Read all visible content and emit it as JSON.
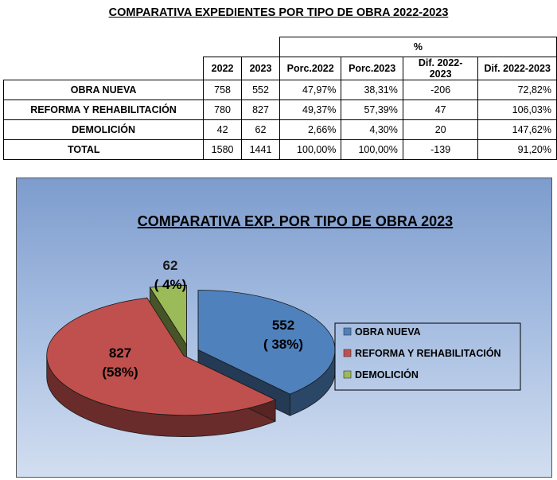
{
  "page": {
    "title": "COMPARATIVA EXPEDIENTES POR TIPO DE OBRA 2022-2023"
  },
  "table": {
    "group_header": "%",
    "headers": [
      "2022",
      "2023",
      "Porc.2022",
      "Porc.2023",
      "Dif. 2022-2023",
      "Dif. 2022-2023"
    ],
    "rows": [
      {
        "label": "OBRA NUEVA",
        "y2022": "758",
        "y2023": "552",
        "p2022": "47,97%",
        "p2023": "38,31%",
        "dif": "-206",
        "difp": "72,82%"
      },
      {
        "label": "REFORMA Y REHABILITACIÓN",
        "y2022": "780",
        "y2023": "827",
        "p2022": "49,37%",
        "p2023": "57,39%",
        "dif": "47",
        "difp": "106,03%"
      },
      {
        "label": "DEMOLICIÓN",
        "y2022": "42",
        "y2023": "62",
        "p2022": "2,66%",
        "p2023": "4,30%",
        "dif": "20",
        "difp": "147,62%"
      },
      {
        "label": "TOTAL",
        "y2022": "1580",
        "y2023": "1441",
        "p2022": "100,00%",
        "p2023": "100,00%",
        "dif": "-139",
        "difp": "91,20%"
      }
    ]
  },
  "chart_data": {
    "type": "pie",
    "title": "COMPARATIVA EXP. POR TIPO DE OBRA 2023",
    "slices": [
      {
        "name": "OBRA NUEVA",
        "value": 552,
        "label": "552",
        "pct_label": "( 38%)",
        "color": "#4f81bd"
      },
      {
        "name": "REFORMA Y REHABILITACIÓN",
        "value": 827,
        "label": "827",
        "pct_label": "(58%)",
        "color": "#c0504d"
      },
      {
        "name": "DEMOLICIÓN",
        "value": 62,
        "label": "62",
        "pct_label": "( 4%)",
        "color": "#9bbb59"
      }
    ],
    "legend_position": "right",
    "style": "3d-exploded"
  }
}
